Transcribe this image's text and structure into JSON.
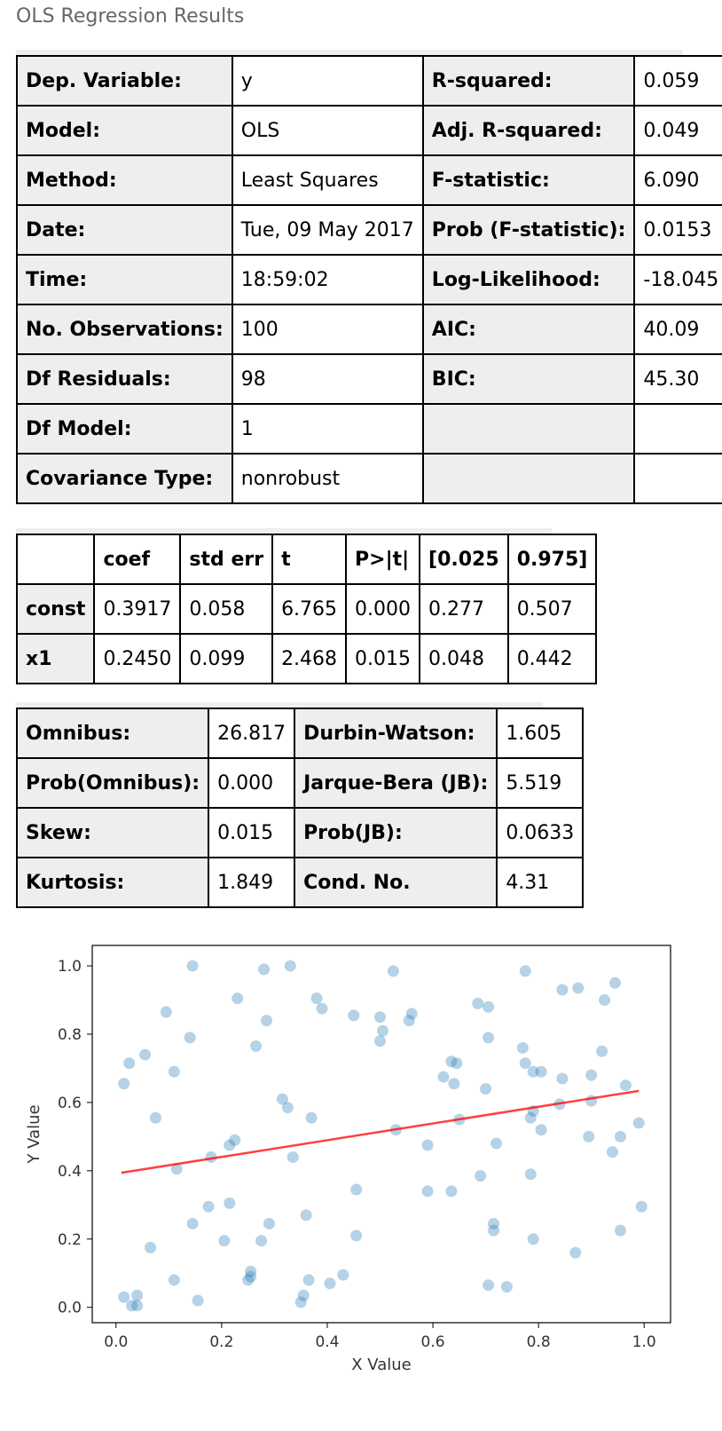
{
  "page": {
    "title": "OLS Regression Results"
  },
  "summary": {
    "rows": [
      [
        "Dep. Variable:",
        "y",
        "R-squared:",
        "0.059"
      ],
      [
        "Model:",
        "OLS",
        "Adj. R-squared:",
        "0.049"
      ],
      [
        "Method:",
        "Least Squares",
        "F-statistic:",
        "6.090"
      ],
      [
        "Date:",
        "Tue, 09 May 2017",
        "Prob (F-statistic):",
        "0.0153"
      ],
      [
        "Time:",
        "18:59:02",
        "Log-Likelihood:",
        "-18.045"
      ],
      [
        "No. Observations:",
        "100",
        "AIC:",
        "40.09"
      ],
      [
        "Df Residuals:",
        "98",
        "BIC:",
        "45.30"
      ],
      [
        "Df Model:",
        "1",
        "",
        ""
      ],
      [
        "Covariance Type:",
        "nonrobust",
        "",
        ""
      ]
    ]
  },
  "coefficients": {
    "headers": [
      "",
      "coef",
      "std err",
      "t",
      "P>|t|",
      "[0.025",
      "0.975]"
    ],
    "rows": [
      [
        "const",
        "0.3917",
        "0.058",
        "6.765",
        "0.000",
        "0.277",
        "0.507"
      ],
      [
        "x1",
        "0.2450",
        "0.099",
        "2.468",
        "0.015",
        "0.048",
        "0.442"
      ]
    ]
  },
  "diagnostics": {
    "rows": [
      [
        "Omnibus:",
        "26.817",
        "Durbin-Watson:",
        "1.605"
      ],
      [
        "Prob(Omnibus):",
        "0.000",
        "Jarque-Bera (JB):",
        "5.519"
      ],
      [
        "Skew:",
        "0.015",
        "Prob(JB):",
        "0.0633"
      ],
      [
        "Kurtosis:",
        "1.849",
        "Cond. No.",
        "4.31"
      ]
    ]
  },
  "chart_data": {
    "type": "scatter",
    "xlabel": "X Value",
    "ylabel": "Y Value",
    "xlim": [
      -0.045,
      1.05
    ],
    "ylim": [
      -0.045,
      1.06
    ],
    "xticks": [
      "0.0",
      "0.2",
      "0.4",
      "0.6",
      "0.8",
      "1.0"
    ],
    "yticks": [
      "0.0",
      "0.2",
      "0.4",
      "0.6",
      "0.8",
      "1.0"
    ],
    "grid": false,
    "point_color": "#1f77b4",
    "line_color": "#ff0000",
    "points": [
      [
        0.015,
        0.655
      ],
      [
        0.025,
        0.715
      ],
      [
        0.055,
        0.74
      ],
      [
        0.075,
        0.555
      ],
      [
        0.095,
        0.865
      ],
      [
        0.11,
        0.69
      ],
      [
        0.14,
        0.79
      ],
      [
        0.145,
        1.0
      ],
      [
        0.23,
        0.905
      ],
      [
        0.265,
        0.765
      ],
      [
        0.28,
        0.99
      ],
      [
        0.285,
        0.84
      ],
      [
        0.315,
        0.61
      ],
      [
        0.325,
        0.585
      ],
      [
        0.33,
        1.0
      ],
      [
        0.38,
        0.905
      ],
      [
        0.39,
        0.875
      ],
      [
        0.45,
        0.855
      ],
      [
        0.5,
        0.85
      ],
      [
        0.5,
        0.78
      ],
      [
        0.505,
        0.81
      ],
      [
        0.525,
        0.985
      ],
      [
        0.555,
        0.84
      ],
      [
        0.56,
        0.86
      ],
      [
        0.685,
        0.89
      ],
      [
        0.705,
        0.88
      ],
      [
        0.705,
        0.79
      ],
      [
        0.77,
        0.76
      ],
      [
        0.775,
        0.985
      ],
      [
        0.775,
        0.715
      ],
      [
        0.79,
        0.69
      ],
      [
        0.805,
        0.69
      ],
      [
        0.845,
        0.93
      ],
      [
        0.875,
        0.935
      ],
      [
        0.925,
        0.9
      ],
      [
        0.945,
        0.95
      ],
      [
        0.92,
        0.75
      ],
      [
        0.9,
        0.68
      ],
      [
        0.965,
        0.65
      ],
      [
        0.845,
        0.67
      ],
      [
        0.62,
        0.675
      ],
      [
        0.635,
        0.72
      ],
      [
        0.645,
        0.715
      ],
      [
        0.64,
        0.655
      ],
      [
        0.7,
        0.64
      ],
      [
        0.65,
        0.55
      ],
      [
        0.53,
        0.52
      ],
      [
        0.59,
        0.475
      ],
      [
        0.37,
        0.555
      ],
      [
        0.335,
        0.44
      ],
      [
        0.18,
        0.44
      ],
      [
        0.215,
        0.475
      ],
      [
        0.225,
        0.49
      ],
      [
        0.115,
        0.405
      ],
      [
        0.065,
        0.175
      ],
      [
        0.145,
        0.245
      ],
      [
        0.205,
        0.195
      ],
      [
        0.175,
        0.295
      ],
      [
        0.215,
        0.305
      ],
      [
        0.275,
        0.195
      ],
      [
        0.29,
        0.245
      ],
      [
        0.36,
        0.27
      ],
      [
        0.455,
        0.345
      ],
      [
        0.455,
        0.21
      ],
      [
        0.59,
        0.34
      ],
      [
        0.635,
        0.34
      ],
      [
        0.69,
        0.385
      ],
      [
        0.72,
        0.48
      ],
      [
        0.715,
        0.245
      ],
      [
        0.715,
        0.225
      ],
      [
        0.785,
        0.555
      ],
      [
        0.79,
        0.575
      ],
      [
        0.805,
        0.52
      ],
      [
        0.785,
        0.39
      ],
      [
        0.79,
        0.2
      ],
      [
        0.84,
        0.595
      ],
      [
        0.895,
        0.5
      ],
      [
        0.9,
        0.605
      ],
      [
        0.94,
        0.455
      ],
      [
        0.955,
        0.5
      ],
      [
        0.99,
        0.54
      ],
      [
        0.955,
        0.225
      ],
      [
        0.995,
        0.295
      ],
      [
        0.87,
        0.16
      ],
      [
        0.705,
        0.065
      ],
      [
        0.74,
        0.06
      ],
      [
        0.43,
        0.095
      ],
      [
        0.405,
        0.07
      ],
      [
        0.365,
        0.08
      ],
      [
        0.355,
        0.035
      ],
      [
        0.35,
        0.015
      ],
      [
        0.25,
        0.08
      ],
      [
        0.255,
        0.09
      ],
      [
        0.255,
        0.105
      ],
      [
        0.155,
        0.02
      ],
      [
        0.11,
        0.08
      ],
      [
        0.015,
        0.03
      ],
      [
        0.03,
        0.005
      ],
      [
        0.04,
        0.005
      ],
      [
        0.04,
        0.035
      ]
    ],
    "fit_line": {
      "x": [
        0.01,
        0.99
      ],
      "y": [
        0.394,
        0.634
      ]
    }
  }
}
